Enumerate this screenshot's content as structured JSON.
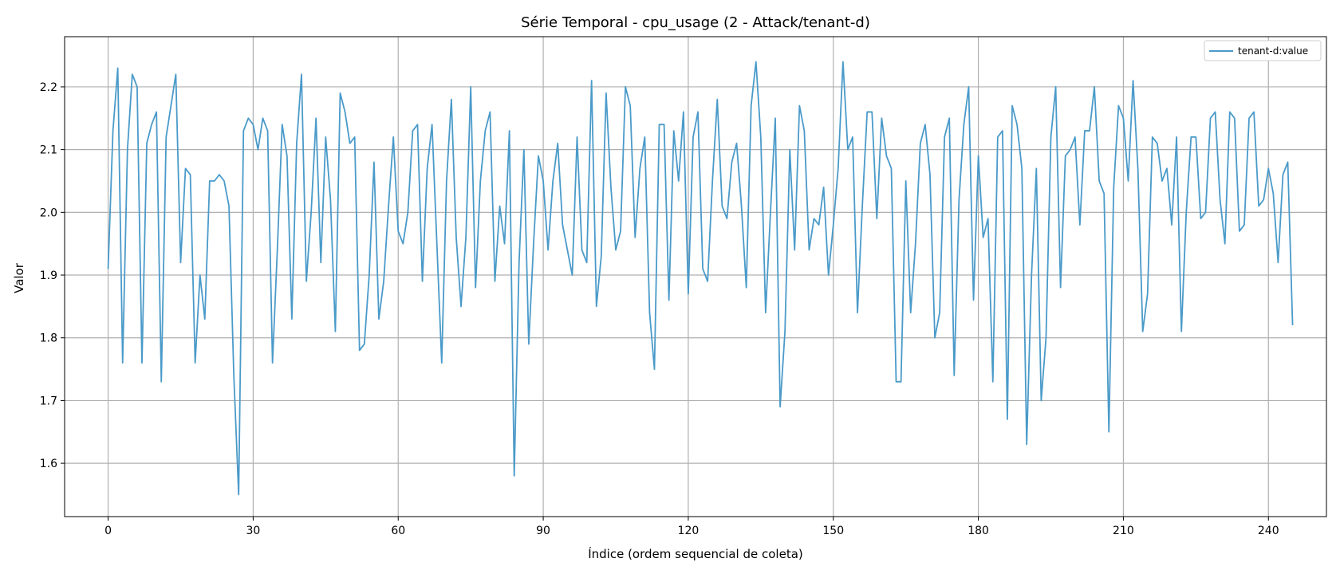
{
  "chart_data": {
    "type": "line",
    "title": "Série Temporal - cpu_usage (2 - Attack/tenant-d)",
    "xlabel": "Índice (ordem sequencial de coleta)",
    "ylabel": "Valor",
    "xlim": [
      -9,
      252
    ],
    "ylim": [
      1.515,
      2.28
    ],
    "xticks": [
      0,
      30,
      60,
      90,
      120,
      150,
      180,
      210,
      240
    ],
    "yticks": [
      1.6,
      1.7,
      1.8,
      1.9,
      2.0,
      2.1,
      2.2
    ],
    "ytick_labels": [
      "1.6",
      "1.7",
      "1.8",
      "1.9",
      "2.0",
      "2.1",
      "2.2"
    ],
    "grid": true,
    "legend_position": "top-right",
    "color": "#4a9ac9",
    "series": [
      {
        "name": "tenant-d:value",
        "values": [
          1.91,
          2.13,
          2.23,
          1.76,
          2.1,
          2.22,
          2.2,
          1.76,
          2.11,
          2.14,
          2.16,
          1.73,
          2.12,
          2.17,
          2.22,
          1.92,
          2.07,
          2.06,
          1.76,
          1.9,
          1.83,
          2.05,
          2.05,
          2.06,
          2.05,
          2.01,
          1.74,
          1.55,
          2.13,
          2.15,
          2.14,
          2.1,
          2.15,
          2.13,
          1.76,
          1.94,
          2.14,
          2.09,
          1.83,
          2.11,
          2.22,
          1.89,
          2.0,
          2.15,
          1.92,
          2.12,
          2.02,
          1.81,
          2.19,
          2.16,
          2.11,
          2.12,
          1.78,
          1.79,
          1.9,
          2.08,
          1.83,
          1.89,
          2.01,
          2.12,
          1.97,
          1.95,
          2.0,
          2.13,
          2.14,
          1.89,
          2.07,
          2.14,
          1.95,
          1.76,
          2.05,
          2.18,
          1.96,
          1.85,
          1.96,
          2.2,
          1.88,
          2.05,
          2.13,
          2.16,
          1.89,
          2.01,
          1.95,
          2.13,
          1.58,
          1.92,
          2.1,
          1.79,
          1.95,
          2.09,
          2.05,
          1.94,
          2.05,
          2.11,
          1.98,
          1.94,
          1.9,
          2.12,
          1.94,
          1.92,
          2.21,
          1.85,
          1.93,
          2.19,
          2.04,
          1.94,
          1.97,
          2.2,
          2.17,
          1.96,
          2.07,
          2.12,
          1.84,
          1.75,
          2.14,
          2.14,
          1.86,
          2.13,
          2.05,
          2.16,
          1.87,
          2.12,
          2.16,
          1.91,
          1.89,
          2.05,
          2.18,
          2.01,
          1.99,
          2.08,
          2.11,
          2.01,
          1.88,
          2.17,
          2.24,
          2.12,
          1.84,
          2.0,
          2.15,
          1.69,
          1.81,
          2.1,
          1.94,
          2.17,
          2.13,
          1.94,
          1.99,
          1.98,
          2.04,
          1.9,
          1.98,
          2.07,
          2.24,
          2.1,
          2.12,
          1.84,
          2.01,
          2.16,
          2.16,
          1.99,
          2.15,
          2.09,
          2.07,
          1.73,
          1.73,
          2.05,
          1.84,
          1.95,
          2.11,
          2.14,
          2.06,
          1.8,
          1.84,
          2.12,
          2.15,
          1.74,
          2.02,
          2.14,
          2.2,
          1.86,
          2.09,
          1.96,
          1.99,
          1.73,
          2.12,
          2.13,
          1.67,
          2.17,
          2.14,
          2.07,
          1.63,
          1.9,
          2.07,
          1.7,
          1.8,
          2.12,
          2.2,
          1.88,
          2.09,
          2.1,
          2.12,
          1.98,
          2.13,
          2.13,
          2.2,
          2.05,
          2.03,
          1.65,
          2.04,
          2.17,
          2.15,
          2.05,
          2.21,
          2.07,
          1.81,
          1.87,
          2.12,
          2.11,
          2.05,
          2.07,
          1.98,
          2.12,
          1.81,
          2.0,
          2.12,
          2.12,
          1.99,
          2.0,
          2.15,
          2.16,
          2.02,
          1.95,
          2.16,
          2.15,
          1.97,
          1.98,
          2.15,
          2.16,
          2.01,
          2.02,
          2.07,
          2.03,
          1.92,
          2.06,
          2.08,
          1.82
        ]
      }
    ]
  }
}
